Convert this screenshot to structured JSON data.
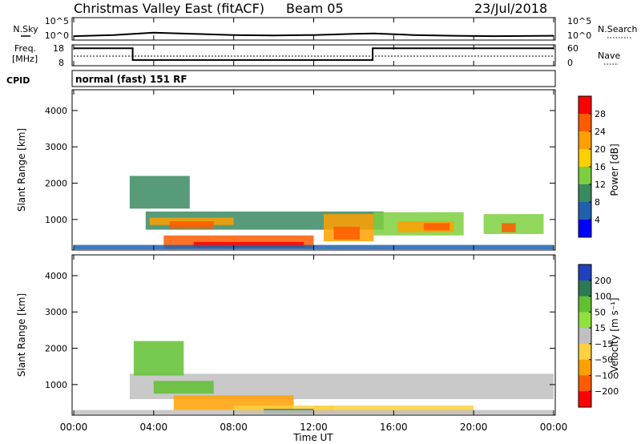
{
  "header": {
    "title": "Christmas Valley East (fitACF)",
    "beam": "Beam 05",
    "date": "23/Jul/2018"
  },
  "nsky_panel": {
    "left_label": "N.Sky",
    "right_label": "N.Search",
    "left_ticks": [
      "10^5",
      "10^0"
    ],
    "right_ticks": [
      "10^5",
      "10^0"
    ]
  },
  "freq_panel": {
    "left_label_1": "Freq.",
    "left_label_2": "[MHz]",
    "right_label": "Nave",
    "left_ticks": [
      "18",
      "8"
    ],
    "right_ticks": [
      "60",
      "0"
    ]
  },
  "cpid": {
    "label": "CPID",
    "value": "normal (fast) 151 RF"
  },
  "power_panel": {
    "ylabel": "Slant Range [km]",
    "yticks": [
      "4000",
      "3000",
      "2000",
      "1000"
    ],
    "colorbar_label": "Power [dB]",
    "colorbar_ticks": [
      "28",
      "24",
      "20",
      "16",
      "12",
      "8",
      "4"
    ],
    "colors": [
      "#ff0000",
      "#ff5a00",
      "#ffa000",
      "#ffd000",
      "#7cd040",
      "#3a8a60",
      "#2060b0",
      "#0000ff"
    ]
  },
  "velocity_panel": {
    "ylabel": "Slant Range [km]",
    "yticks": [
      "4000",
      "3000",
      "2000",
      "1000"
    ],
    "colorbar_label": "Velocity [m s⁻¹]",
    "colorbar_ticks": [
      "200",
      "100",
      "50",
      "15",
      "-15",
      "-50",
      "-100",
      "-200"
    ],
    "colors": [
      "#2040c0",
      "#2a7a55",
      "#60c030",
      "#90e040",
      "#c0c0c0",
      "#ffd040",
      "#ffa000",
      "#ff5a00",
      "#ff0000"
    ]
  },
  "xaxis": {
    "ticks": [
      "00:00",
      "04:00",
      "08:00",
      "12:00",
      "16:00",
      "20:00",
      "00:00"
    ],
    "label": "Time UT"
  },
  "chart_data": [
    {
      "type": "line",
      "name": "N.Sky",
      "x_hours": [
        0,
        2,
        4,
        6,
        8,
        10,
        12,
        14,
        15,
        17,
        19,
        21,
        24
      ],
      "values_log10": [
        0.6,
        0.9,
        1.5,
        1.2,
        0.9,
        0.8,
        0.9,
        1.2,
        1.3,
        0.9,
        0.7,
        0.6,
        0.7
      ],
      "ylim_log10": [
        0,
        5
      ]
    },
    {
      "type": "line",
      "name": "Freq.",
      "x_hours": [
        0,
        2.95,
        2.95,
        14.95,
        14.95,
        24
      ],
      "values": [
        17,
        17,
        10.3,
        10.3,
        17,
        17
      ],
      "ylim": [
        8,
        18
      ]
    },
    {
      "type": "heatmap",
      "name": "Power",
      "xlim_hours": [
        0,
        24
      ],
      "ylim_km": [
        180,
        4550
      ],
      "clim_db": [
        0,
        32
      ],
      "cells": [
        {
          "t": [
            3.6,
            15.5
          ],
          "r": [
            720,
            1220
          ],
          "v": 12
        },
        {
          "t": [
            3.8,
            8.0
          ],
          "r": [
            850,
            1050
          ],
          "v": 22
        },
        {
          "t": [
            4.8,
            7.0
          ],
          "r": [
            750,
            950
          ],
          "v": 26
        },
        {
          "t": [
            4.5,
            12.0
          ],
          "r": [
            200,
            560
          ],
          "v": 27
        },
        {
          "t": [
            6.0,
            11.5
          ],
          "r": [
            220,
            380
          ],
          "v": 30
        },
        {
          "t": [
            12.5,
            15.0
          ],
          "r": [
            400,
            1150
          ],
          "v": 22
        },
        {
          "t": [
            13.0,
            14.3
          ],
          "r": [
            450,
            800
          ],
          "v": 26
        },
        {
          "t": [
            15.0,
            19.5
          ],
          "r": [
            560,
            1200
          ],
          "v": 14
        },
        {
          "t": [
            16.2,
            19.0
          ],
          "r": [
            650,
            950
          ],
          "v": 22
        },
        {
          "t": [
            17.5,
            18.8
          ],
          "r": [
            700,
            900
          ],
          "v": 26
        },
        {
          "t": [
            20.5,
            23.5
          ],
          "r": [
            600,
            1150
          ],
          "v": 14
        },
        {
          "t": [
            21.4,
            22.1
          ],
          "r": [
            650,
            900
          ],
          "v": 26
        },
        {
          "t": [
            2.8,
            5.8
          ],
          "r": [
            1300,
            2200
          ],
          "v": 9
        },
        {
          "t": [
            0.0,
            24.0
          ],
          "r": [
            180,
            300
          ],
          "v": 6
        }
      ]
    },
    {
      "type": "heatmap",
      "name": "Velocity",
      "xlim_hours": [
        0,
        24
      ],
      "ylim_km": [
        180,
        4550
      ],
      "clim_ms": [
        -250,
        250
      ],
      "cells": [
        {
          "t": [
            2.8,
            24.0
          ],
          "r": [
            600,
            1300
          ],
          "v": 0
        },
        {
          "t": [
            4.0,
            7.0
          ],
          "r": [
            750,
            1100
          ],
          "v": 40
        },
        {
          "t": [
            3.0,
            5.5
          ],
          "r": [
            1250,
            2200
          ],
          "v": 40
        },
        {
          "t": [
            5.0,
            11.0
          ],
          "r": [
            300,
            700
          ],
          "v": -40
        },
        {
          "t": [
            8.0,
            13.0
          ],
          "r": [
            200,
            420
          ],
          "v": -25
        },
        {
          "t": [
            9.5,
            12.0
          ],
          "r": [
            200,
            330
          ],
          "v": 120
        },
        {
          "t": [
            12.0,
            20.0
          ],
          "r": [
            200,
            420
          ],
          "v": -30
        },
        {
          "t": [
            0.0,
            24.0
          ],
          "r": [
            180,
            300
          ],
          "v": 0
        }
      ]
    }
  ]
}
